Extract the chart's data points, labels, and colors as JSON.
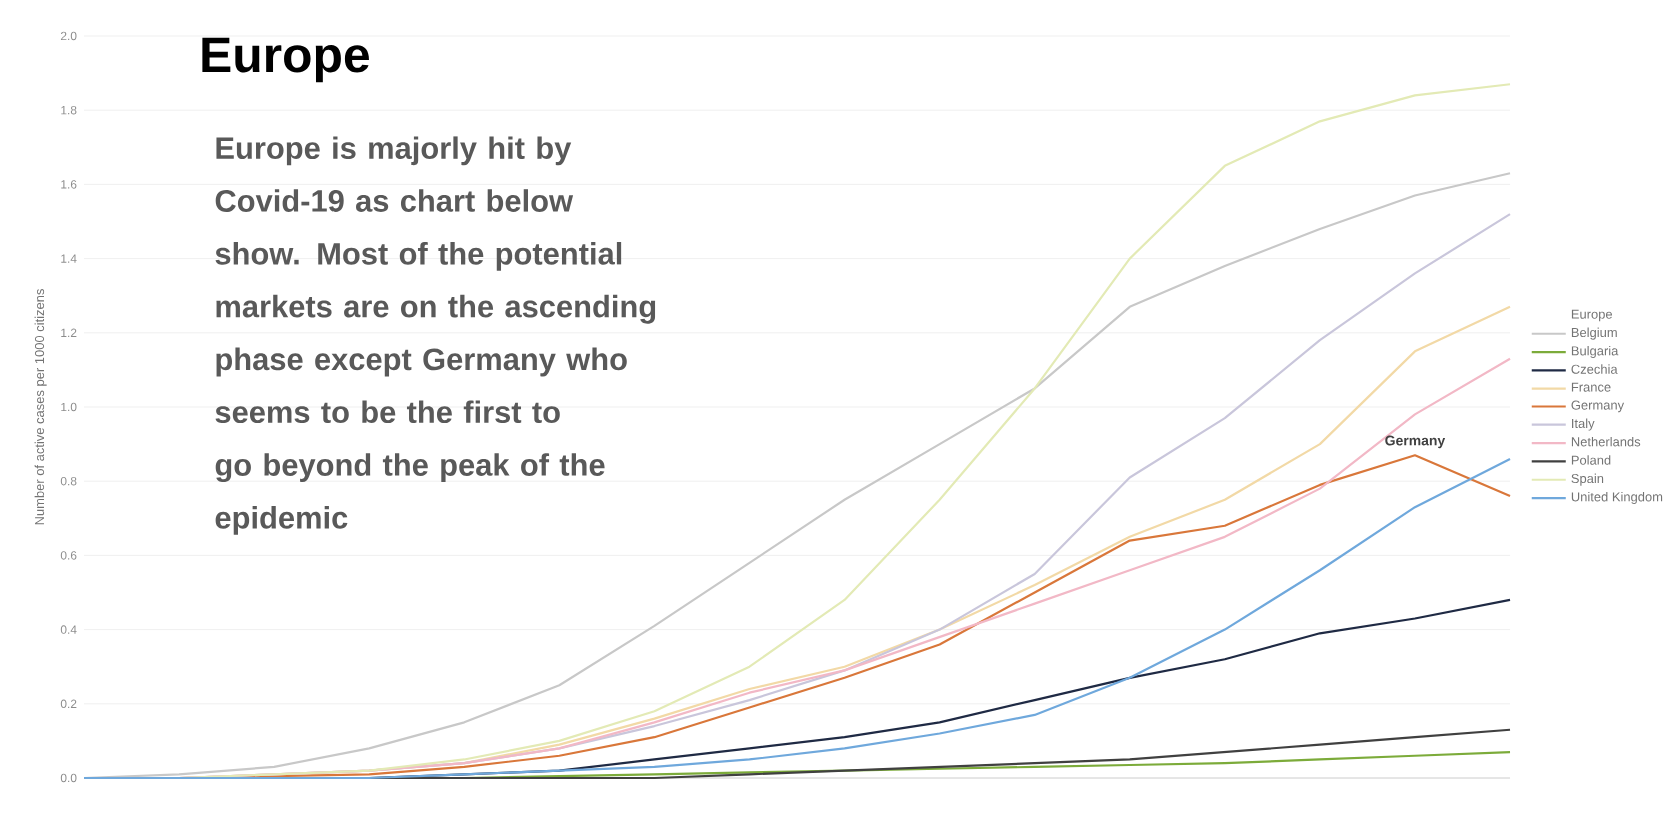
{
  "chart_data": {
    "type": "line",
    "title": "Europe",
    "ylabel": "Number of active cases per 1000 citizens",
    "legend_title": "Europe",
    "legend": "right",
    "grid": "y",
    "marker": "none",
    "line_style": "solid",
    "categories": [
      null,
      null,
      null,
      null,
      null,
      null,
      null,
      null,
      null,
      null,
      null,
      null,
      null,
      null,
      null,
      null
    ],
    "ylim": [
      0,
      2
    ],
    "yticks": [
      {
        "value": 0,
        "label": "0.0"
      },
      {
        "value": 0.2,
        "label": "0.2"
      },
      {
        "value": 0.4,
        "label": "0.4"
      },
      {
        "value": 0.6,
        "label": "0.6"
      },
      {
        "value": 0.8,
        "label": "0.8"
      },
      {
        "value": 1,
        "label": "1.0"
      },
      {
        "value": 1.2,
        "label": "1.2"
      },
      {
        "value": 1.4,
        "label": "1.4"
      },
      {
        "value": 1.6,
        "label": "1.6"
      },
      {
        "value": 1.8,
        "label": "1.8"
      },
      {
        "value": 2,
        "label": "2.0"
      }
    ],
    "series": [
      {
        "name": "Belgium",
        "color": "#c8c8c8",
        "values": [
          0,
          0.01,
          0.03,
          0.08,
          0.15,
          0.25,
          0.41,
          0.58,
          0.75,
          0.9,
          1.05,
          1.27,
          1.38,
          1.48,
          1.57,
          1.63
        ]
      },
      {
        "name": "Bulgaria",
        "color": "#7cab3a",
        "values": [
          0,
          0,
          0,
          0,
          0,
          0.005,
          0.01,
          0.015,
          0.02,
          0.025,
          0.03,
          0.035,
          0.04,
          0.05,
          0.06,
          0.07
        ]
      },
      {
        "name": "Czechia",
        "color": "#1f2a44",
        "values": [
          null,
          null,
          0,
          0,
          0.01,
          0.02,
          0.05,
          0.08,
          0.11,
          0.15,
          0.21,
          0.27,
          0.32,
          0.39,
          0.43,
          0.48
        ]
      },
      {
        "name": "France",
        "color": "#f2d9a6",
        "values": [
          0,
          0,
          0.01,
          0.02,
          0.04,
          0.09,
          0.16,
          0.24,
          0.3,
          0.4,
          0.52,
          0.65,
          0.75,
          0.9,
          1.15,
          1.27
        ]
      },
      {
        "name": "Germany",
        "color": "#d9773a",
        "values": [
          0,
          0,
          0.005,
          0.01,
          0.03,
          0.06,
          0.11,
          0.19,
          0.27,
          0.36,
          0.5,
          0.64,
          0.68,
          0.79,
          0.87,
          0.76
        ]
      },
      {
        "name": "Italy",
        "color": "#c9c6db",
        "values": [
          0,
          0,
          0.01,
          0.02,
          0.04,
          0.08,
          0.14,
          0.21,
          0.29,
          0.4,
          0.55,
          0.81,
          0.97,
          1.18,
          1.36,
          1.52
        ]
      },
      {
        "name": "Netherlands",
        "color": "#f2b8c6",
        "values": [
          0,
          0,
          0.01,
          0.02,
          0.04,
          0.08,
          0.15,
          0.23,
          0.29,
          0.38,
          0.47,
          0.56,
          0.65,
          0.78,
          0.98,
          1.13
        ]
      },
      {
        "name": "Poland",
        "color": "#404040",
        "values": [
          null,
          null,
          0,
          0,
          0,
          0,
          0,
          0.01,
          0.02,
          0.03,
          0.04,
          0.05,
          0.07,
          0.09,
          0.11,
          0.13
        ]
      },
      {
        "name": "Spain",
        "color": "#e3eab5",
        "values": [
          0,
          0,
          0.01,
          0.02,
          0.05,
          0.1,
          0.18,
          0.3,
          0.48,
          0.75,
          1.05,
          1.4,
          1.65,
          1.77,
          1.84,
          1.87
        ]
      },
      {
        "name": "United Kingdom",
        "color": "#6fa8dc",
        "values": [
          0,
          0,
          0,
          0,
          0.01,
          0.02,
          0.03,
          0.05,
          0.08,
          0.12,
          0.17,
          0.27,
          0.4,
          0.56,
          0.73,
          0.86
        ]
      }
    ],
    "annotations": [
      "Europe is majorly hit by Covid-19 as chart below show. Most of the potential markets are on the ascending phase except Germany who seems to be the first to go beyond the peak of the epidemic",
      {
        "text": "Germany",
        "y": 0.87
      }
    ]
  }
}
